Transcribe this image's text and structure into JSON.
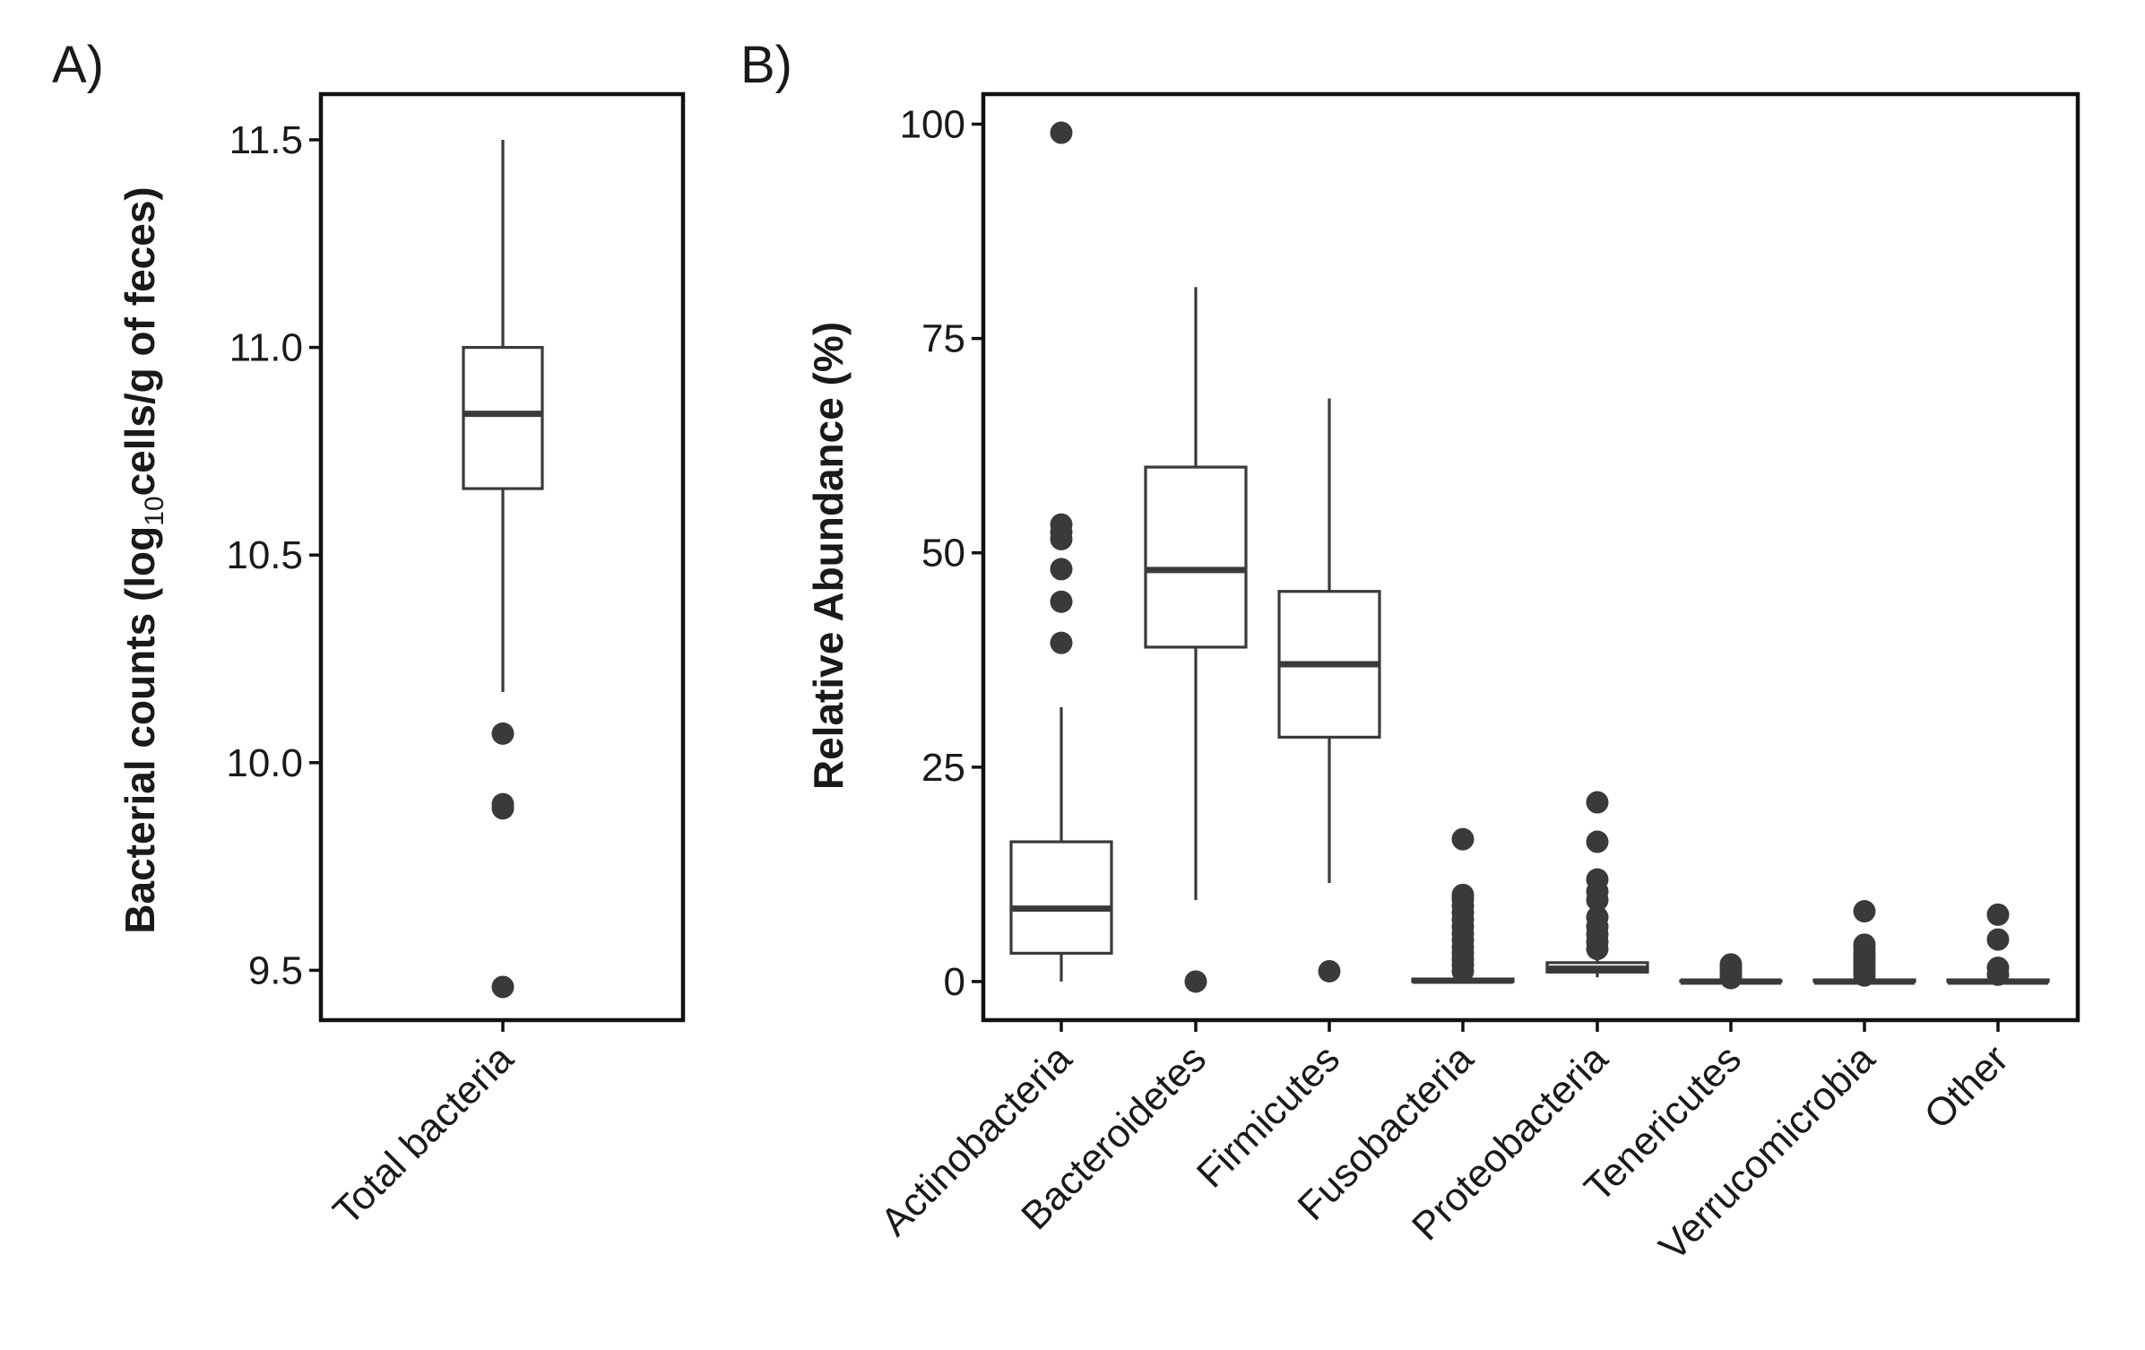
{
  "chart_data": [
    {
      "type": "box",
      "panel_label": "A)",
      "ylabel_main": "Bacterial counts (log",
      "ylabel_subscript": "10",
      "ylabel_rest": "cells/g of feces)",
      "xlabel": "",
      "ylim": [
        9.38,
        11.61
      ],
      "yticks": [
        {
          "value": 9.5,
          "label": "9.5"
        },
        {
          "value": 10.0,
          "label": "10.0"
        },
        {
          "value": 10.5,
          "label": "10.5"
        },
        {
          "value": 11.0,
          "label": "11.0"
        },
        {
          "value": 11.5,
          "label": "11.5"
        }
      ],
      "grid": false,
      "categories": [
        "Total bacteria"
      ],
      "boxes": [
        {
          "name": "Total bacteria",
          "whisker_low": 10.17,
          "q1": 10.66,
          "median": 10.84,
          "q3": 11.0,
          "whisker_high": 11.5,
          "outliers": [
            10.07,
            9.9,
            9.89,
            9.46
          ]
        }
      ]
    },
    {
      "type": "box",
      "panel_label": "B)",
      "ylabel": "Relative Abundance (%)",
      "xlabel": "",
      "ylim": [
        -4.5,
        103.5
      ],
      "yticks": [
        {
          "value": 0,
          "label": "0"
        },
        {
          "value": 25,
          "label": "25"
        },
        {
          "value": 50,
          "label": "50"
        },
        {
          "value": 75,
          "label": "75"
        },
        {
          "value": 100,
          "label": "100"
        }
      ],
      "grid": false,
      "categories": [
        "Actinobacteria",
        "Bacteroidetes",
        "Firmicutes",
        "Fusobacteria",
        "Proteobacteria",
        "Tenericutes",
        "Verrucomicrobia",
        "Other"
      ],
      "boxes": [
        {
          "name": "Actinobacteria",
          "whisker_low": 0,
          "q1": 3.3,
          "median": 8.5,
          "q3": 16.3,
          "whisker_high": 32,
          "outliers": [
            39.5,
            44.3,
            48.1,
            51.6,
            52.4,
            53.3,
            99.0
          ]
        },
        {
          "name": "Bacteroidetes",
          "whisker_low": 9.5,
          "q1": 39.0,
          "median": 48.0,
          "q3": 60.0,
          "whisker_high": 81,
          "outliers": [
            0
          ]
        },
        {
          "name": "Firmicutes",
          "whisker_low": 11.5,
          "q1": 28.5,
          "median": 37.0,
          "q3": 45.5,
          "whisker_high": 68,
          "outliers": [
            1.2
          ]
        },
        {
          "name": "Fusobacteria",
          "whisker_low": 0,
          "q1": 0,
          "median": 0.1,
          "q3": 0.3,
          "whisker_high": 0.6,
          "outliers": [
            1.2,
            1.9,
            2.6,
            3.3,
            4.0,
            4.8,
            5.6,
            6.4,
            7.2,
            8.0,
            8.8,
            9.6,
            10.1,
            16.6
          ]
        },
        {
          "name": "Proteobacteria",
          "whisker_low": 0.5,
          "q1": 1.1,
          "median": 1.5,
          "q3": 2.2,
          "whisker_high": 3.0,
          "outliers": [
            3.8,
            4.6,
            5.5,
            6.4,
            7.5,
            9.5,
            10.5,
            11.9,
            16.3,
            20.9
          ]
        },
        {
          "name": "Tenericutes",
          "whisker_low": 0,
          "q1": 0,
          "median": 0,
          "q3": 0.1,
          "whisker_high": 0.2,
          "outliers": [
            0.4,
            0.8,
            1.2,
            1.6,
            2.0
          ]
        },
        {
          "name": "Verrucomicrobia",
          "whisker_low": 0,
          "q1": 0,
          "median": 0,
          "q3": 0.2,
          "whisker_high": 0.4,
          "outliers": [
            0.7,
            1.2,
            1.7,
            2.2,
            2.7,
            3.2,
            3.8,
            4.3,
            8.2
          ]
        },
        {
          "name": "Other",
          "whisker_low": 0,
          "q1": 0,
          "median": 0,
          "q3": 0.2,
          "whisker_high": 0.4,
          "outliers": [
            0.8,
            1.6,
            4.9,
            7.8
          ]
        }
      ]
    }
  ]
}
